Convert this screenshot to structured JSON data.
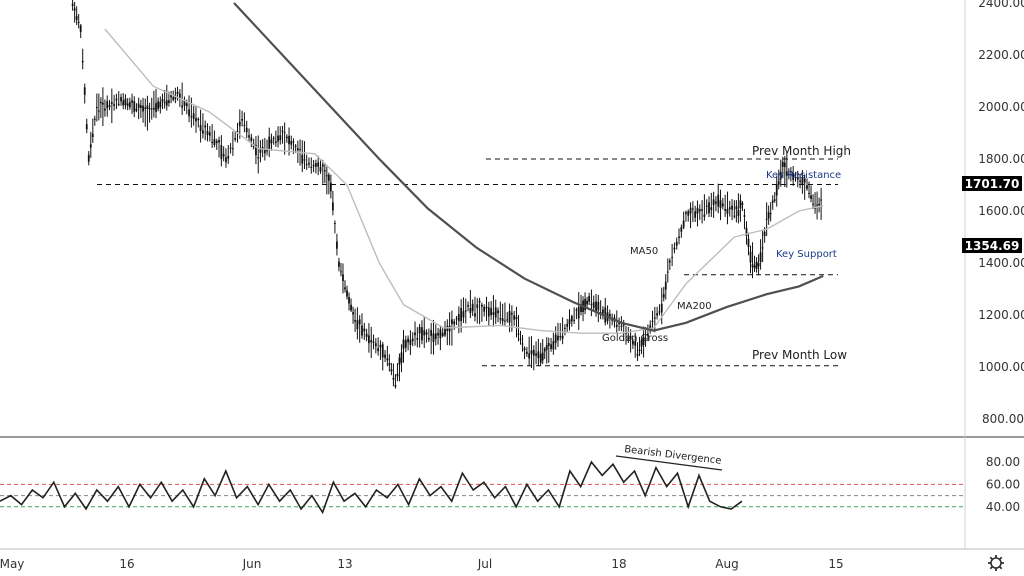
{
  "chart_data": [
    {
      "type": "candlestick",
      "price_axis": {
        "ticks": [
          "2400.00",
          "2200.00",
          "2000.00",
          "1800.00",
          "1600.00",
          "1400.00",
          "1200.00",
          "1000.00",
          "800.00"
        ],
        "ylim": [
          780,
          2420
        ]
      },
      "time_axis": {
        "ticks": [
          "May",
          "16",
          "Jun",
          "13",
          "Jul",
          "18",
          "Aug",
          "15"
        ]
      },
      "price_path": [
        [
          "2021-05-10",
          2400
        ],
        [
          "2021-05-11",
          2300
        ],
        [
          "2021-05-12",
          1800
        ],
        [
          "2021-05-13",
          2000
        ],
        [
          "2021-05-14",
          2000
        ],
        [
          "2021-05-16",
          2030
        ],
        [
          "2021-05-19",
          1980
        ],
        [
          "2021-05-23",
          2050
        ],
        [
          "2021-05-25",
          1960
        ],
        [
          "2021-05-27",
          1900
        ],
        [
          "2021-05-29",
          1800
        ],
        [
          "2021-05-31",
          1950
        ],
        [
          "2021-06-02",
          1820
        ],
        [
          "2021-06-05",
          1900
        ],
        [
          "2021-06-08",
          1790
        ],
        [
          "2021-06-10",
          1760
        ],
        [
          "2021-06-11",
          1690
        ],
        [
          "2021-06-12",
          1400
        ],
        [
          "2021-06-13",
          1280
        ],
        [
          "2021-06-14",
          1180
        ],
        [
          "2021-06-16",
          1100
        ],
        [
          "2021-06-18",
          1040
        ],
        [
          "2021-06-19",
          940
        ],
        [
          "2021-06-20",
          1080
        ],
        [
          "2021-06-22",
          1130
        ],
        [
          "2021-06-24",
          1110
        ],
        [
          "2021-06-26",
          1160
        ],
        [
          "2021-06-28",
          1230
        ],
        [
          "2021-06-30",
          1220
        ],
        [
          "2021-07-02",
          1200
        ],
        [
          "2021-07-04",
          1180
        ],
        [
          "2021-07-05",
          1060
        ],
        [
          "2021-07-07",
          1040
        ],
        [
          "2021-07-08",
          1070
        ],
        [
          "2021-07-10",
          1150
        ],
        [
          "2021-07-12",
          1230
        ],
        [
          "2021-07-13",
          1260
        ],
        [
          "2021-07-15",
          1200
        ],
        [
          "2021-07-17",
          1160
        ],
        [
          "2021-07-19",
          1060
        ],
        [
          "2021-07-20",
          1110
        ],
        [
          "2021-07-22",
          1240
        ],
        [
          "2021-07-23",
          1400
        ],
        [
          "2021-07-25",
          1580
        ],
        [
          "2021-07-27",
          1600
        ],
        [
          "2021-07-29",
          1640
        ],
        [
          "2021-07-31",
          1600
        ],
        [
          "2021-08-01",
          1620
        ],
        [
          "2021-08-02",
          1420
        ],
        [
          "2021-08-03",
          1380
        ],
        [
          "2021-08-04",
          1560
        ],
        [
          "2021-08-05",
          1650
        ],
        [
          "2021-08-06",
          1770
        ],
        [
          "2021-08-07",
          1740
        ],
        [
          "2021-08-09",
          1700
        ],
        [
          "2021-08-10",
          1620
        ],
        [
          "2021-08-11",
          1630
        ]
      ],
      "moving_averages": [
        {
          "name": "MA50",
          "points": [
            [
              "2021-05-14",
              2300
            ],
            [
              "2021-05-20",
              2080
            ],
            [
              "2021-05-27",
              1980
            ],
            [
              "2021-06-02",
              1840
            ],
            [
              "2021-06-09",
              1820
            ],
            [
              "2021-06-13",
              1700
            ],
            [
              "2021-06-17",
              1400
            ],
            [
              "2021-06-20",
              1240
            ],
            [
              "2021-06-25",
              1150
            ],
            [
              "2021-07-02",
              1160
            ],
            [
              "2021-07-07",
              1140
            ],
            [
              "2021-07-12",
              1130
            ],
            [
              "2021-07-17",
              1130
            ],
            [
              "2021-07-21",
              1150
            ],
            [
              "2021-07-25",
              1320
            ],
            [
              "2021-07-31",
              1500
            ],
            [
              "2021-08-04",
              1530
            ],
            [
              "2021-08-08",
              1600
            ],
            [
              "2021-08-11",
              1620
            ]
          ]
        },
        {
          "name": "MA200",
          "points": [
            [
              "2021-05-30",
              2400
            ],
            [
              "2021-06-05",
              2200
            ],
            [
              "2021-06-11",
              2000
            ],
            [
              "2021-06-17",
              1800
            ],
            [
              "2021-06-23",
              1610
            ],
            [
              "2021-06-29",
              1460
            ],
            [
              "2021-07-05",
              1340
            ],
            [
              "2021-07-11",
              1250
            ],
            [
              "2021-07-17",
              1170
            ],
            [
              "2021-07-21",
              1140
            ],
            [
              "2021-07-25",
              1170
            ],
            [
              "2021-07-30",
              1230
            ],
            [
              "2021-08-04",
              1280
            ],
            [
              "2021-08-08",
              1310
            ],
            [
              "2021-08-11",
              1350
            ]
          ]
        }
      ],
      "price_lines": [
        {
          "label": "Prev Month High",
          "value": 1800
        },
        {
          "label": "Key Resistance",
          "value": 1701.7,
          "badge": "1701.70"
        },
        {
          "label": "Key Support",
          "value": 1354.69,
          "badge": "1354.69"
        },
        {
          "label": "Prev Month Low",
          "value": 1005
        }
      ],
      "annotations": [
        "Golden Cross",
        "MA50",
        "MA200"
      ],
      "colors": {
        "candles": "#111111",
        "ma50": "#bdbdbd",
        "ma200": "#505050",
        "badge": "#000000",
        "blue_label": "#1b3a8a"
      }
    },
    {
      "type": "line",
      "y_axis": {
        "ticks": [
          "80.00",
          "60.00",
          "40.00"
        ],
        "ylim": [
          20,
          90
        ]
      },
      "reference_lines": [
        {
          "value": 60,
          "color": "#e05555"
        },
        {
          "value": 50,
          "color": "#888888"
        },
        {
          "value": 40,
          "color": "#3aa85a"
        }
      ],
      "series": [
        {
          "values": [
            45,
            50,
            42,
            55,
            48,
            62,
            40,
            52,
            38,
            55,
            45,
            58,
            40,
            60,
            48,
            62,
            45,
            55,
            40,
            65,
            50,
            72,
            48,
            58,
            42,
            60,
            45,
            55,
            38,
            50,
            35,
            62,
            45,
            52,
            40,
            55,
            48,
            60,
            42,
            65,
            50,
            58,
            45,
            70,
            55,
            62,
            48,
            58,
            40,
            60,
            45,
            55,
            40,
            72,
            58,
            80,
            68,
            78,
            62,
            72,
            50,
            75,
            58,
            70,
            40,
            68,
            45,
            40,
            38,
            45
          ]
        }
      ],
      "annotations": [
        "Bearish Divergence"
      ],
      "colors": {
        "line": "#222222"
      }
    }
  ],
  "ui": {
    "settings_icon": "gear-icon"
  }
}
